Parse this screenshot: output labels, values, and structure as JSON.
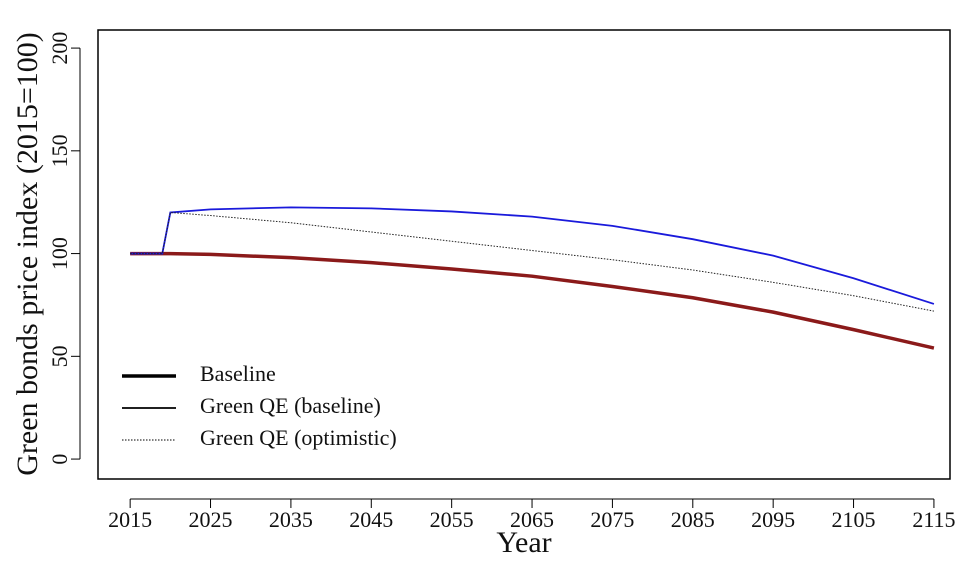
{
  "chart_data": {
    "type": "line",
    "x_label": "Year",
    "y_label": "Green bonds price index (2015=100)",
    "x": [
      2015,
      2019,
      2020,
      2025,
      2035,
      2045,
      2055,
      2065,
      2075,
      2085,
      2095,
      2105,
      2115
    ],
    "series": [
      {
        "name": "Baseline",
        "color": "#8b1a1a",
        "width": 3.5,
        "dash": "solid",
        "values": [
          100,
          100,
          100,
          99.6,
          98,
          95.6,
          92.5,
          89,
          84,
          78.5,
          71.5,
          63,
          54
        ]
      },
      {
        "name": "Green QE (baseline)",
        "color": "#1a1adb",
        "width": 1.8,
        "dash": "solid",
        "values": [
          100,
          100,
          120,
          121.5,
          122.5,
          122,
          120.5,
          118,
          113.5,
          107,
          99,
          88,
          75.5
        ]
      },
      {
        "name": "Green QE (optimistic)",
        "color": "#222222",
        "width": 1,
        "dash": "dotted",
        "values": [
          100,
          100,
          120,
          118.5,
          115,
          110.5,
          106,
          101.5,
          97,
          92,
          86,
          79.5,
          72
        ]
      }
    ],
    "xlim": [
      2011,
      2117
    ],
    "ylim": [
      -9.7,
      208.8
    ],
    "xticks": [
      2015,
      2025,
      2035,
      2045,
      2055,
      2065,
      2075,
      2085,
      2095,
      2105,
      2115
    ],
    "yticks": [
      0,
      50,
      100,
      150,
      200
    ],
    "legend": "bottom-left"
  }
}
